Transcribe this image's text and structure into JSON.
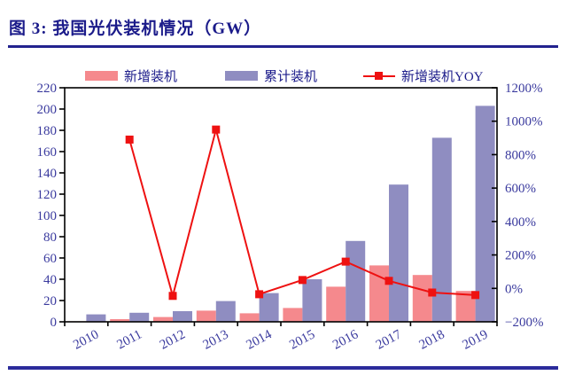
{
  "figure": {
    "title": "图 3: 我国光伏装机情况（GW）"
  },
  "legend": {
    "items": [
      {
        "label": "新增装机",
        "type": "bar",
        "color": "#f5898d"
      },
      {
        "label": "累计装机",
        "type": "bar",
        "color": "#8f8dc1"
      },
      {
        "label": "新增装机YOY",
        "type": "line",
        "color": "#ee1111"
      }
    ]
  },
  "colors": {
    "title_navy": "#1b1b8a",
    "rule_navy": "#22228e",
    "axis_text_blue": "#3a3a9e",
    "new_bar_pink": "#f5898d",
    "cumulative_bar_purple": "#8f8dc1",
    "yoy_line_red": "#ee1111",
    "plot_frame_black": "#000000"
  },
  "chart_data": {
    "type": "bar",
    "subtype": "grouped-bars-with-line",
    "title": "图 3: 我国光伏装机情况（GW）",
    "categories": [
      "2010",
      "2011",
      "2012",
      "2013",
      "2014",
      "2015",
      "2016",
      "2017",
      "2018",
      "2019"
    ],
    "series": [
      {
        "name": "新增装机",
        "type": "bar",
        "axis": "left",
        "unit": "GW",
        "color": "#f5898d",
        "values": [
          0.5,
          2.5,
          4.5,
          10.5,
          8,
          13,
          33,
          53,
          44,
          29
        ]
      },
      {
        "name": "累计装机",
        "type": "bar",
        "axis": "left",
        "unit": "GW",
        "color": "#8f8dc1",
        "values": [
          7,
          8.5,
          10,
          19.5,
          27,
          40,
          76,
          129,
          173,
          203
        ]
      },
      {
        "name": "新增装机YOY",
        "type": "line",
        "axis": "right",
        "unit": "%",
        "color": "#ee1111",
        "marker": "square",
        "values": [
          null,
          890,
          -45,
          950,
          -35,
          50,
          160,
          45,
          -25,
          -40
        ]
      }
    ],
    "left_axis": {
      "min": 0,
      "max": 220,
      "step": 20,
      "ticks": [
        "0",
        "20",
        "40",
        "60",
        "80",
        "100",
        "120",
        "140",
        "160",
        "180",
        "200",
        "220"
      ]
    },
    "right_axis": {
      "min": -200,
      "max": 1200,
      "step": 200,
      "ticks": [
        "-200%",
        "0%",
        "200%",
        "400%",
        "600%",
        "800%",
        "1000%",
        "1200%"
      ]
    },
    "grid": false,
    "legend_position": "top",
    "x_label_rotation_deg": -28
  }
}
